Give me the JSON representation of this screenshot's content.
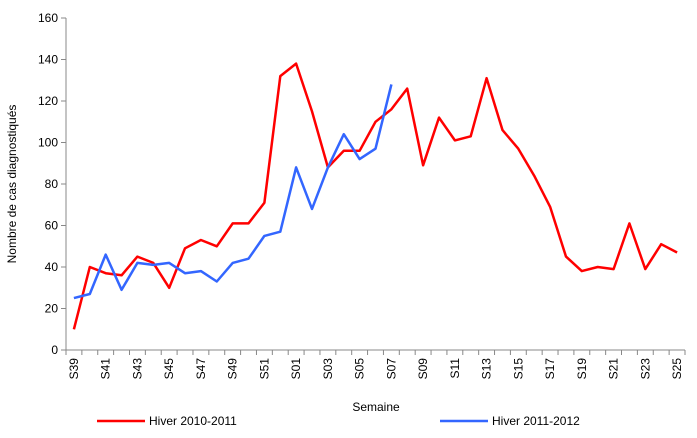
{
  "chart_data": {
    "type": "line",
    "x_label": "Semaine",
    "y_label": "Nombre de cas diagnostiqués",
    "categories": [
      "S39",
      null,
      "S41",
      null,
      "S43",
      null,
      "S45",
      null,
      "S47",
      null,
      "S49",
      null,
      "S51",
      null,
      "S01",
      null,
      "S03",
      null,
      "S05",
      null,
      "S07",
      null,
      "S09",
      null,
      "S11",
      null,
      "S13",
      null,
      "S15",
      null,
      "S17",
      null,
      "S19",
      null,
      "S21",
      null,
      "S23",
      null,
      "S25"
    ],
    "series": [
      {
        "name": "Hiver 2010-2011",
        "color": "#ff0000",
        "values": [
          10,
          40,
          37,
          36,
          45,
          42,
          30,
          49,
          53,
          50,
          61,
          61,
          71,
          132,
          138,
          115,
          88,
          96,
          96,
          110,
          116,
          126,
          89,
          112,
          101,
          103,
          131,
          106,
          97,
          84,
          69,
          45,
          38,
          40,
          39,
          61,
          39,
          51,
          47
        ]
      },
      {
        "name": "Hiver 2011-2012",
        "color": "#3366ff",
        "values": [
          25,
          27,
          46,
          29,
          42,
          41,
          42,
          37,
          38,
          33,
          42,
          44,
          55,
          57,
          88,
          68,
          88,
          104,
          92,
          97,
          128,
          null,
          null,
          null,
          null,
          null,
          null,
          null,
          null,
          null,
          null,
          null,
          null,
          null,
          null,
          null,
          null,
          null,
          null
        ]
      }
    ],
    "ylim": [
      0,
      160
    ],
    "yticks": [
      0,
      20,
      40,
      60,
      80,
      100,
      120,
      140,
      160
    ],
    "grid": false
  }
}
